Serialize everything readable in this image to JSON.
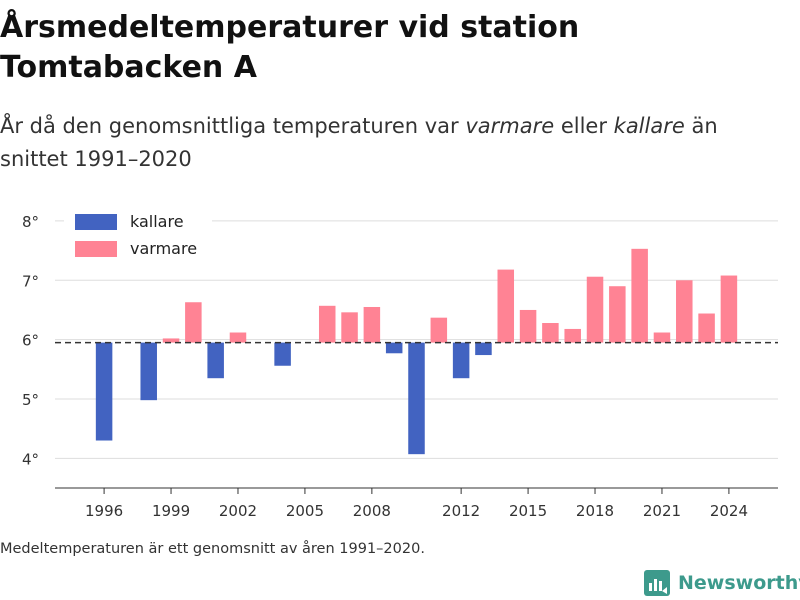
{
  "title": "Årsmedeltemperaturer vid station Tomtabacken A",
  "subtitle": {
    "part1": "År då den genomsnittliga temperaturen var ",
    "warm_word": "varmare",
    "part2": " eller ",
    "cold_word": "kallare",
    "part3": " än snittet 1991–2020"
  },
  "footnote": "Medeltemperaturen är ett genomsnitt av åren 1991–2020.",
  "brand": {
    "name": "Newsworthy",
    "icon": "newsworthy-logo-icon"
  },
  "colors": {
    "colder": "#4263c1",
    "warmer": "#ff8394",
    "grid": "#dddddd",
    "baseline": "#333333"
  },
  "chart_data": {
    "type": "bar",
    "ylabel": "",
    "ylim": [
      3.5,
      8.1
    ],
    "yticks": [
      4,
      5,
      6,
      7,
      8
    ],
    "ytick_suffix": "°",
    "xlim": [
      1993.8,
      2026.2
    ],
    "xticks": [
      1996,
      1999,
      2002,
      2005,
      2008,
      2012,
      2015,
      2018,
      2021,
      2024
    ],
    "reference": 5.95,
    "legend": {
      "position": "top-left",
      "entries": [
        {
          "label": "kallare",
          "color": "#4263c1"
        },
        {
          "label": "varmare",
          "color": "#ff8394"
        }
      ]
    },
    "series": [
      {
        "name": "kallare",
        "color": "#4263c1",
        "points": [
          {
            "year": 1996,
            "value": 4.3
          },
          {
            "year": 1998,
            "value": 4.98
          },
          {
            "year": 2001,
            "value": 5.35
          },
          {
            "year": 2004,
            "value": 5.56
          },
          {
            "year": 2009,
            "value": 5.77
          },
          {
            "year": 2010,
            "value": 4.07
          },
          {
            "year": 2012,
            "value": 5.35
          },
          {
            "year": 2013,
            "value": 5.74
          }
        ]
      },
      {
        "name": "varmare",
        "color": "#ff8394",
        "points": [
          {
            "year": 1999,
            "value": 6.02
          },
          {
            "year": 2000,
            "value": 6.63
          },
          {
            "year": 2002,
            "value": 6.12
          },
          {
            "year": 2006,
            "value": 6.57
          },
          {
            "year": 2007,
            "value": 6.46
          },
          {
            "year": 2008,
            "value": 6.55
          },
          {
            "year": 2011,
            "value": 6.37
          },
          {
            "year": 2014,
            "value": 7.18
          },
          {
            "year": 2015,
            "value": 6.5
          },
          {
            "year": 2016,
            "value": 6.28
          },
          {
            "year": 2017,
            "value": 6.18
          },
          {
            "year": 2018,
            "value": 7.06
          },
          {
            "year": 2019,
            "value": 6.9
          },
          {
            "year": 2020,
            "value": 7.53
          },
          {
            "year": 2021,
            "value": 6.12
          },
          {
            "year": 2022,
            "value": 7.0
          },
          {
            "year": 2023,
            "value": 6.44
          },
          {
            "year": 2024,
            "value": 7.08
          }
        ]
      }
    ]
  }
}
